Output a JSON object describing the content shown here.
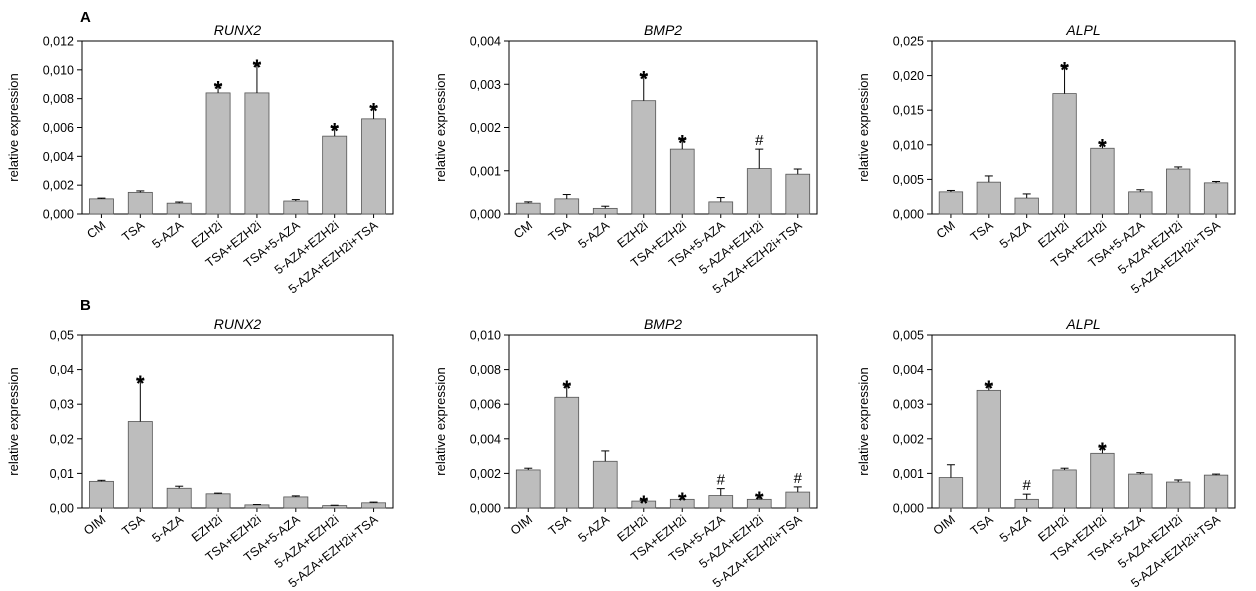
{
  "figure": {
    "panel_labels": [
      "A",
      "B"
    ]
  },
  "style": {
    "bar_fill": "#bdbdbd",
    "bar_stroke": "#555555",
    "axis_color": "#000000"
  },
  "chart_data": [
    {
      "type": "bar",
      "panel": "A",
      "title": "RUNX2",
      "ylabel": "relative expression",
      "ylim": [
        0,
        0.012
      ],
      "yticks": [
        "0,000",
        "0,002",
        "0,004",
        "0,006",
        "0,008",
        "0,010",
        "0,012"
      ],
      "categories": [
        "CM",
        "TSA",
        "5-AZA",
        "EZH2i",
        "TSA+EZH2i",
        "TSA+5-AZA",
        "5-AZA+EZH2i",
        "5-AZA+EZH2i+TSA"
      ],
      "values": [
        0.00105,
        0.0015,
        0.00075,
        0.0084,
        0.0084,
        0.0009,
        0.0054,
        0.0066
      ],
      "errors": [
        5e-05,
        0.0001,
        8e-05,
        0.0005,
        0.002,
        0.0001,
        0.0006,
        0.0008
      ],
      "annotations": [
        "",
        "",
        "",
        "*",
        "*",
        "",
        "*",
        "*"
      ]
    },
    {
      "type": "bar",
      "panel": "A",
      "title": "BMP2",
      "ylabel": "relative expression",
      "ylim": [
        0,
        0.004
      ],
      "yticks": [
        "0,000",
        "0,001",
        "0,002",
        "0,003",
        "0,004"
      ],
      "categories": [
        "CM",
        "TSA",
        "5-AZA",
        "EZH2i",
        "TSA+EZH2i",
        "TSA+5-AZA",
        "5-AZA+EZH2i",
        "5-AZA+EZH2i+TSA"
      ],
      "values": [
        0.00025,
        0.00035,
        0.00013,
        0.00262,
        0.0015,
        0.00028,
        0.00105,
        0.00092
      ],
      "errors": [
        3e-05,
        0.0001,
        5e-05,
        0.00058,
        0.00022,
        0.0001,
        0.00045,
        0.00012
      ],
      "annotations": [
        "",
        "",
        "",
        "*",
        "*",
        "",
        "#",
        ""
      ]
    },
    {
      "type": "bar",
      "panel": "A",
      "title": "ALPL",
      "ylabel": "relative expression",
      "ylim": [
        0,
        0.025
      ],
      "yticks": [
        "0,000",
        "0,005",
        "0,010",
        "0,015",
        "0,020",
        "0,025"
      ],
      "categories": [
        "CM",
        "TSA",
        "5-AZA",
        "EZH2i",
        "TSA+EZH2i",
        "TSA+5-AZA",
        "5-AZA+EZH2i",
        "5-AZA+EZH2i+TSA"
      ],
      "values": [
        0.0032,
        0.0046,
        0.0023,
        0.0174,
        0.0095,
        0.0032,
        0.0065,
        0.0045
      ],
      "errors": [
        0.0002,
        0.0009,
        0.0006,
        0.0039,
        0.0007,
        0.0003,
        0.0003,
        0.0002
      ],
      "annotations": [
        "",
        "",
        "",
        "*",
        "*",
        "",
        "",
        ""
      ]
    },
    {
      "type": "bar",
      "panel": "B",
      "title": "RUNX2",
      "ylabel": "relative expression",
      "ylim": [
        0,
        0.05
      ],
      "yticks": [
        "0,00",
        "0,01",
        "0,02",
        "0,03",
        "0,04",
        "0,05"
      ],
      "categories": [
        "OIM",
        "TSA",
        "5-AZA",
        "EZH2i",
        "TSA+EZH2i",
        "TSA+5-AZA",
        "5-AZA+EZH2i",
        "5-AZA+EZH2i+TSA"
      ],
      "values": [
        0.0077,
        0.025,
        0.0057,
        0.0041,
        0.0009,
        0.0032,
        0.0007,
        0.0015
      ],
      "errors": [
        0.0003,
        0.012,
        0.0006,
        0.0002,
        0.0001,
        0.0003,
        0.0001,
        0.0002
      ],
      "annotations": [
        "",
        "*",
        "",
        "",
        "",
        "",
        "",
        ""
      ]
    },
    {
      "type": "bar",
      "panel": "B",
      "title": "BMP2",
      "ylabel": "relative expression",
      "ylim": [
        0,
        0.01
      ],
      "yticks": [
        "0,000",
        "0,002",
        "0,004",
        "0,006",
        "0,008",
        "0,010"
      ],
      "categories": [
        "OIM",
        "TSA",
        "5-AZA",
        "EZH2i",
        "TSA+EZH2i",
        "TSA+5-AZA",
        "5-AZA+EZH2i",
        "5-AZA+EZH2i+TSA"
      ],
      "values": [
        0.0022,
        0.0064,
        0.0027,
        0.0004,
        0.0005,
        0.00072,
        0.0005,
        0.00092
      ],
      "errors": [
        0.0001,
        0.0007,
        0.0006,
        5e-05,
        0.00015,
        0.0004,
        0.0002,
        0.0003
      ],
      "annotations": [
        "",
        "*",
        "",
        "*",
        "*",
        "#",
        "*",
        "#"
      ]
    },
    {
      "type": "bar",
      "panel": "B",
      "title": "ALPL",
      "ylabel": "relative expression",
      "ylim": [
        0,
        0.005
      ],
      "yticks": [
        "0,000",
        "0,001",
        "0,002",
        "0,003",
        "0,004",
        "0,005"
      ],
      "categories": [
        "OIM",
        "TSA",
        "5-AZA",
        "EZH2i",
        "TSA+EZH2i",
        "TSA+5-AZA",
        "5-AZA+EZH2i",
        "5-AZA+EZH2i+TSA"
      ],
      "values": [
        0.00088,
        0.0034,
        0.00025,
        0.0011,
        0.00158,
        0.00098,
        0.00075,
        0.00095
      ],
      "errors": [
        0.00037,
        0.00015,
        0.00015,
        5e-05,
        0.00018,
        4e-05,
        6e-05,
        3e-05
      ],
      "annotations": [
        "",
        "*",
        "#",
        "",
        "*",
        "",
        "",
        ""
      ]
    }
  ]
}
